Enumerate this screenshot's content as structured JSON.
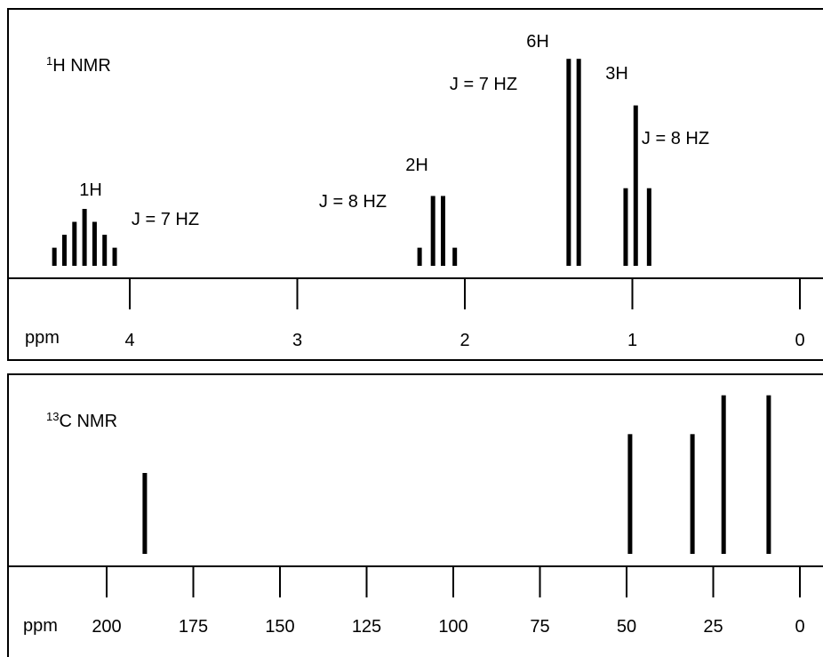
{
  "chart_data": [
    {
      "type": "bar",
      "title": "NMR",
      "title_sup": "1",
      "title_sup_prefix": "",
      "title_main": "H NMR",
      "axis_label": "ppm",
      "x_reversed": true,
      "xlim": [
        4.43,
        0
      ],
      "ticks": [
        {
          "value": 4,
          "label": "4"
        },
        {
          "value": 3,
          "label": "3"
        },
        {
          "value": 2,
          "label": "2"
        },
        {
          "value": 1,
          "label": "1"
        },
        {
          "value": 0,
          "label": "0"
        }
      ],
      "peaks": [
        {
          "center": 4.25,
          "multiplicity": "septet",
          "integration": "1H",
          "coupling": "J = 7 HZ",
          "lines": [
            {
              "shift": 4.45,
              "height": 0.07
            },
            {
              "shift": 4.39,
              "height": 0.12
            },
            {
              "shift": 4.33,
              "height": 0.17
            },
            {
              "shift": 4.27,
              "height": 0.22
            },
            {
              "shift": 4.21,
              "height": 0.17
            },
            {
              "shift": 4.15,
              "height": 0.12
            },
            {
              "shift": 4.09,
              "height": 0.07
            }
          ]
        },
        {
          "center": 2.13,
          "multiplicity": "quartet",
          "integration": "2H",
          "coupling": "J = 8 HZ",
          "lines": [
            {
              "shift": 2.27,
              "height": 0.07
            },
            {
              "shift": 2.19,
              "height": 0.27
            },
            {
              "shift": 2.13,
              "height": 0.27
            },
            {
              "shift": 2.06,
              "height": 0.07
            }
          ]
        },
        {
          "center": 1.35,
          "multiplicity": "doublet",
          "integration": "6H",
          "coupling": "J = 7 HZ",
          "lines": [
            {
              "shift": 1.38,
              "height": 0.8
            },
            {
              "shift": 1.32,
              "height": 0.8
            }
          ]
        },
        {
          "center": 0.98,
          "multiplicity": "triplet",
          "integration": "3H",
          "coupling": "J = 8 HZ",
          "lines": [
            {
              "shift": 1.04,
              "height": 0.3
            },
            {
              "shift": 0.98,
              "height": 0.62
            },
            {
              "shift": 0.9,
              "height": 0.3
            }
          ]
        }
      ]
    },
    {
      "type": "bar",
      "title_sup": "13",
      "title_main": "C NMR",
      "axis_label": "ppm",
      "x_reversed": true,
      "xlim": [
        211,
        0
      ],
      "ticks": [
        {
          "value": 200,
          "label": "200"
        },
        {
          "value": 175,
          "label": "175"
        },
        {
          "value": 150,
          "label": "150"
        },
        {
          "value": 125,
          "label": "125"
        },
        {
          "value": 100,
          "label": "100"
        },
        {
          "value": 75,
          "label": "75"
        },
        {
          "value": 50,
          "label": "50"
        },
        {
          "value": 25,
          "label": "25"
        },
        {
          "value": 0,
          "label": "0"
        }
      ],
      "peaks": [
        {
          "shift": 189,
          "height": 0.5
        },
        {
          "shift": 49,
          "height": 0.74
        },
        {
          "shift": 31,
          "height": 0.74
        },
        {
          "shift": 22,
          "height": 0.98
        },
        {
          "shift": 9,
          "height": 0.98
        }
      ]
    }
  ]
}
